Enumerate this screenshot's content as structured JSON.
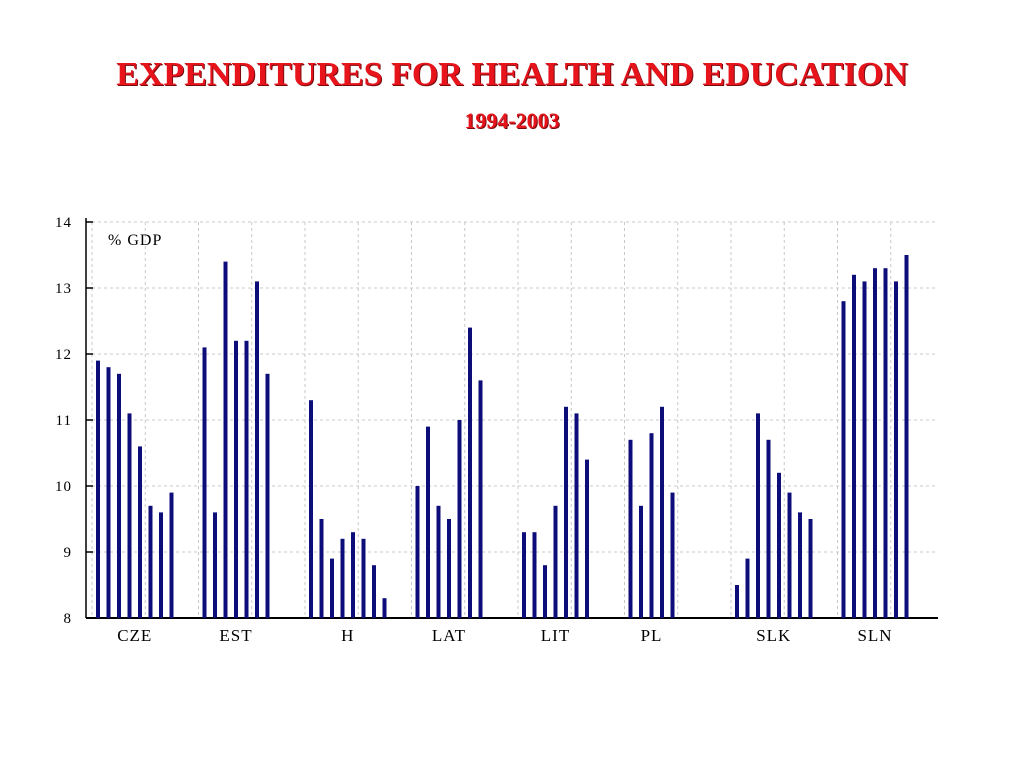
{
  "header": {
    "title": "EXPENDITURES FOR HEALTH AND EDUCATION",
    "subtitle": "1994-2003"
  },
  "colors": {
    "title": "#e8141c",
    "bar": "#0d0d7a",
    "grid": "#c8c8c8"
  },
  "chart_data": {
    "type": "bar",
    "title": "EXPENDITURES FOR HEALTH AND EDUCATION",
    "subtitle": "1994-2003",
    "unit_label": "% GDP",
    "ylim": [
      8,
      14
    ],
    "yticks": [
      8,
      9,
      10,
      11,
      12,
      13,
      14
    ],
    "grid": true,
    "groups": [
      {
        "label": "CZE",
        "values": [
          11.9,
          11.8,
          11.7,
          11.1,
          10.6,
          9.7,
          9.6,
          9.9
        ]
      },
      {
        "label": "EST",
        "values": [
          12.1,
          9.6,
          13.4,
          12.2,
          12.2,
          13.1,
          11.7
        ]
      },
      {
        "label": "H",
        "values": [
          11.3,
          9.5,
          8.9,
          9.2,
          9.3,
          9.2,
          8.8,
          8.3
        ]
      },
      {
        "label": "LAT",
        "values": [
          10.0,
          10.9,
          9.7,
          9.5,
          11.0,
          12.4,
          11.6
        ]
      },
      {
        "label": "LIT",
        "values": [
          9.3,
          9.3,
          8.8,
          9.7,
          11.2,
          11.1,
          10.4
        ]
      },
      {
        "label": "PL",
        "values": [
          10.7,
          9.7,
          10.8,
          11.2,
          9.9
        ]
      },
      {
        "label": "SLK",
        "values": [
          8.5,
          8.9,
          11.1,
          10.7,
          10.2,
          9.9,
          9.6,
          9.5
        ]
      },
      {
        "label": "SLN",
        "values": [
          12.8,
          13.2,
          13.1,
          13.3,
          13.3,
          13.1,
          13.5
        ]
      }
    ]
  }
}
